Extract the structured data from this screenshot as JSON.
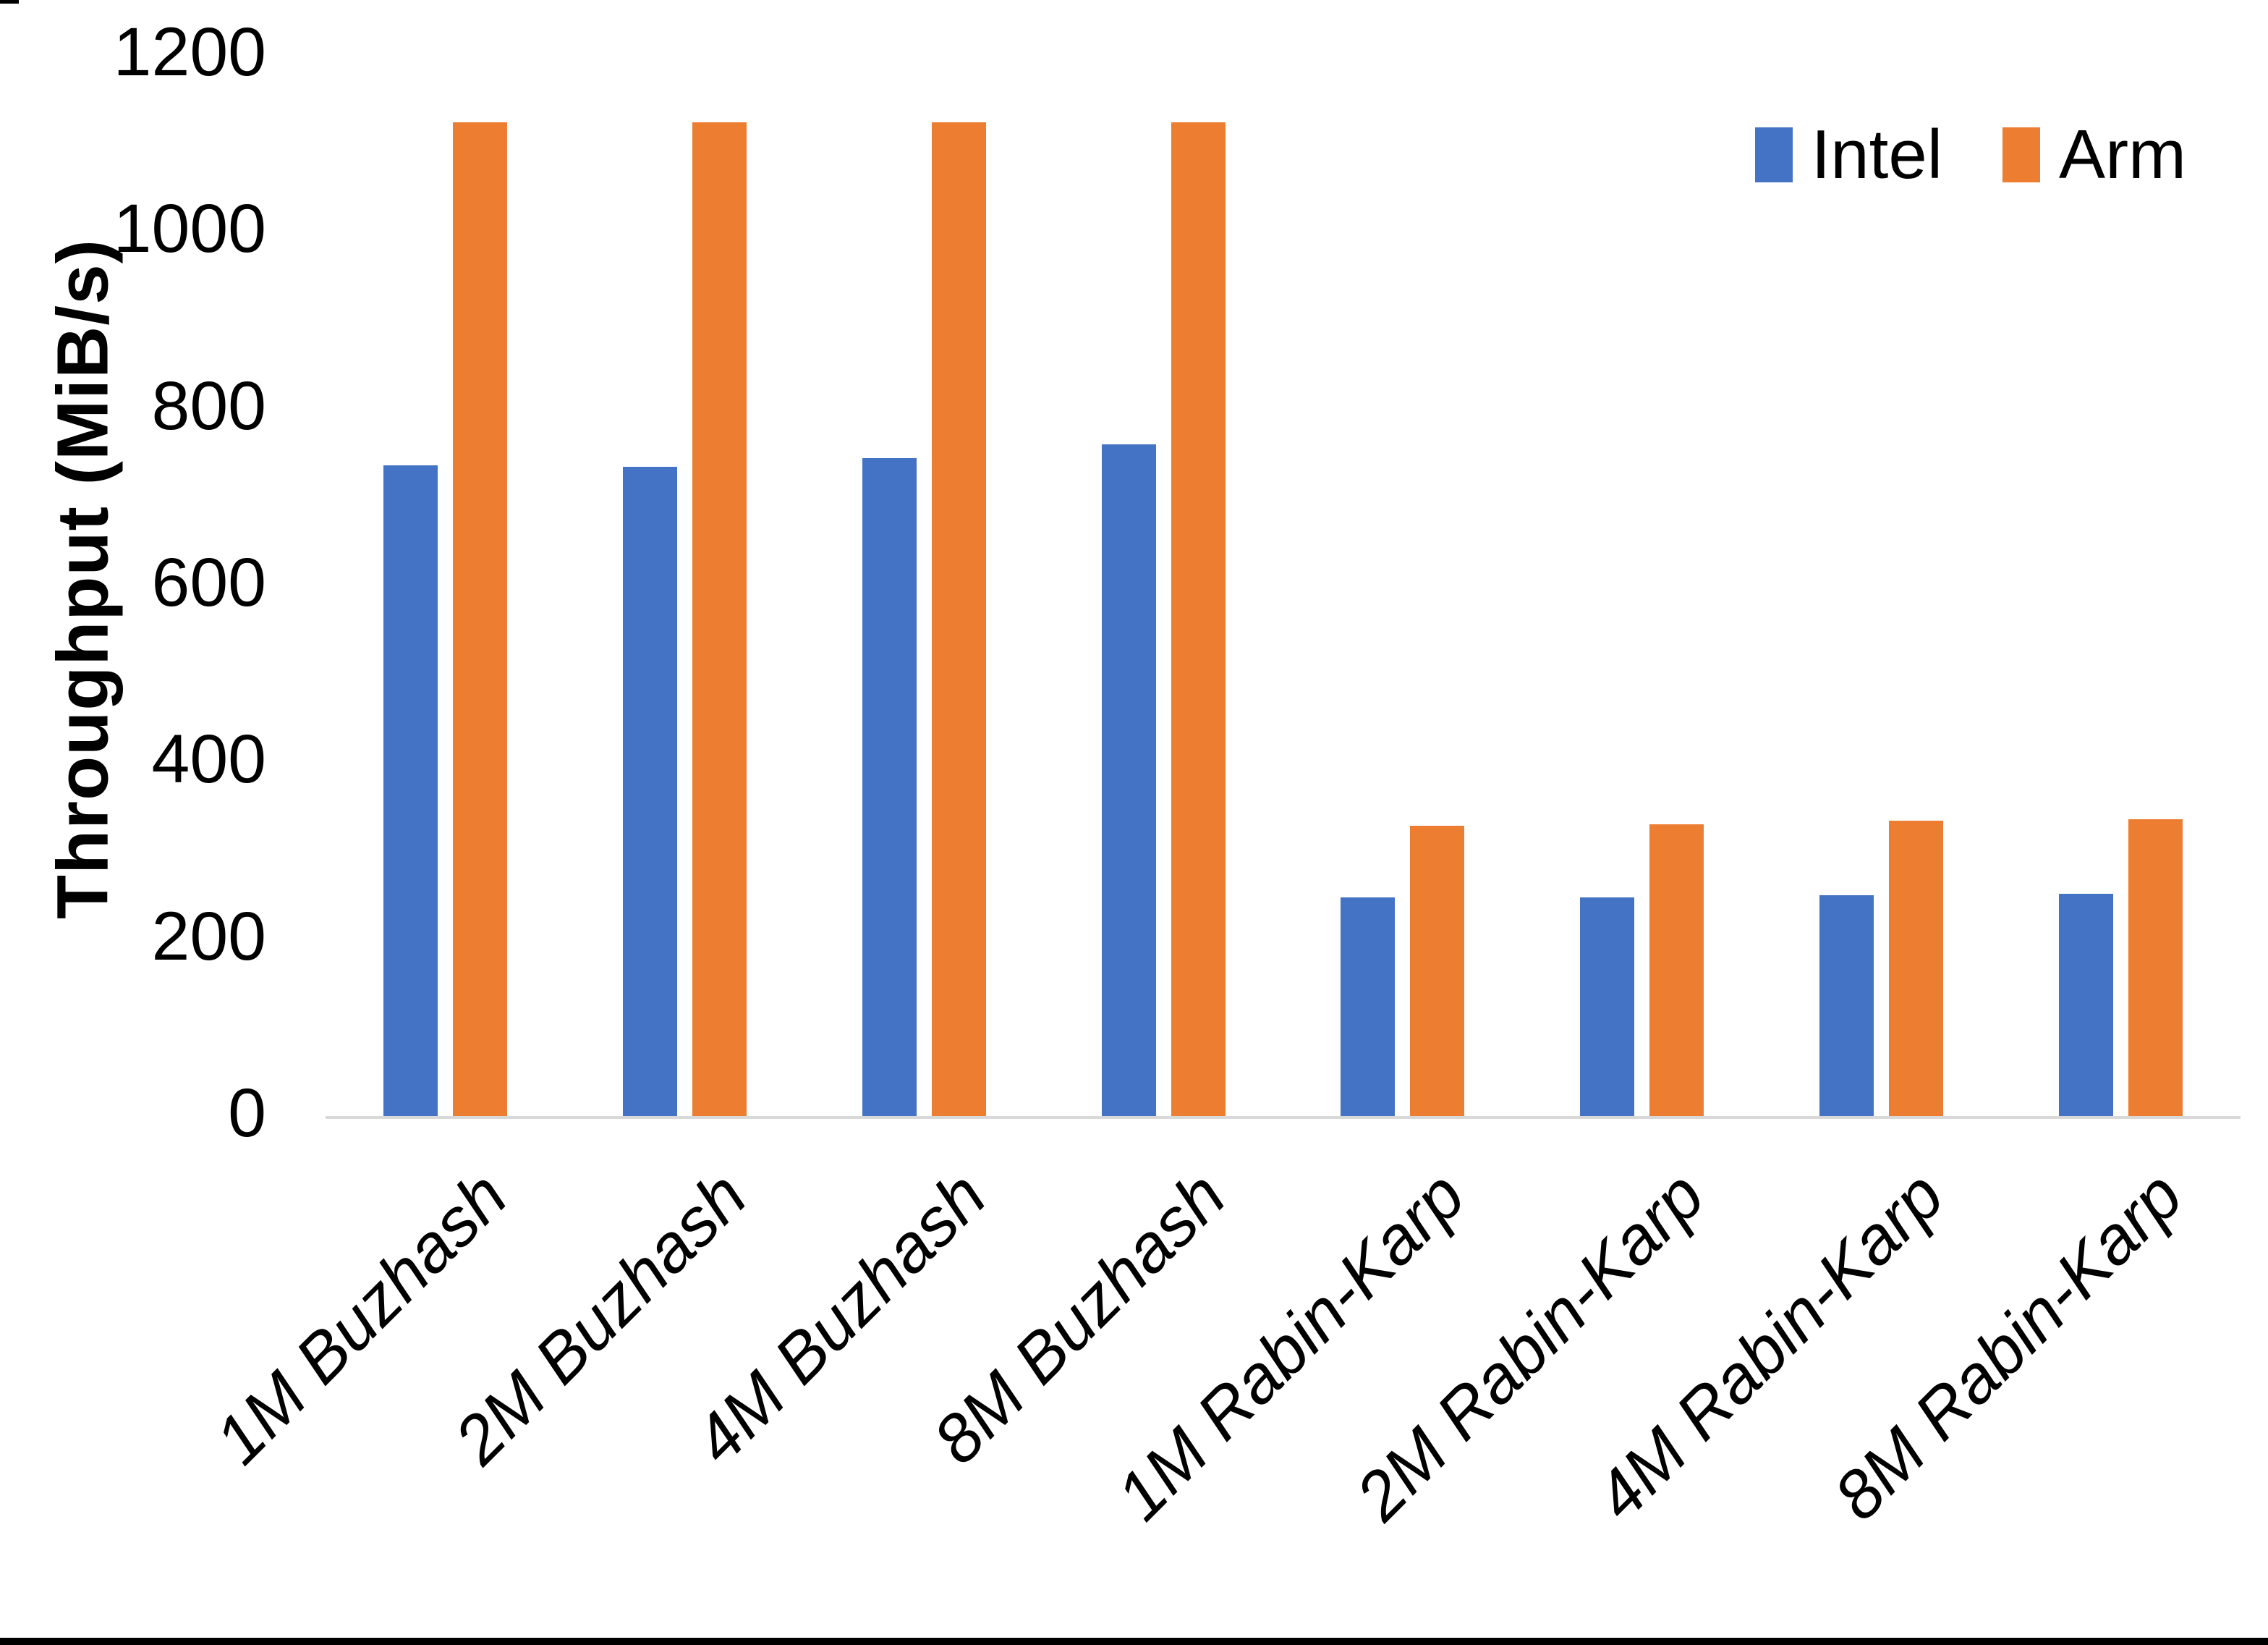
{
  "chart_data": {
    "type": "bar",
    "title": "",
    "categories": [
      "1M Buzhash",
      "2M Buzhash",
      "4M Buzhash",
      "8M Buzhash",
      "1M Rabin-Karp",
      "2M Rabin-Karp",
      "4M Rabin-Karp",
      "8M Rabin-Karp"
    ],
    "series": [
      {
        "name": "Intel",
        "color": "#4472C4",
        "values": [
          736,
          734,
          744,
          760,
          247,
          247,
          250,
          251
        ]
      },
      {
        "name": "Arm",
        "color": "#ED7D31",
        "values": [
          1124,
          1124,
          1124,
          1124,
          328,
          330,
          334,
          336
        ]
      }
    ],
    "xlabel": "",
    "ylabel": "Throughput (MiB/s)",
    "ylim": [
      0,
      1200
    ],
    "yticks": [
      0,
      200,
      400,
      600,
      800,
      1000,
      1200
    ],
    "grid": false,
    "legend_position": "top-right",
    "bar_style": "clustered",
    "x_label_rotation_deg": 45,
    "x_label_style": "italic"
  },
  "colors": {
    "background": "#FFFFFF",
    "axis_line": "#D9D9D9",
    "text": "#000000",
    "bottom_border": "#000000"
  }
}
